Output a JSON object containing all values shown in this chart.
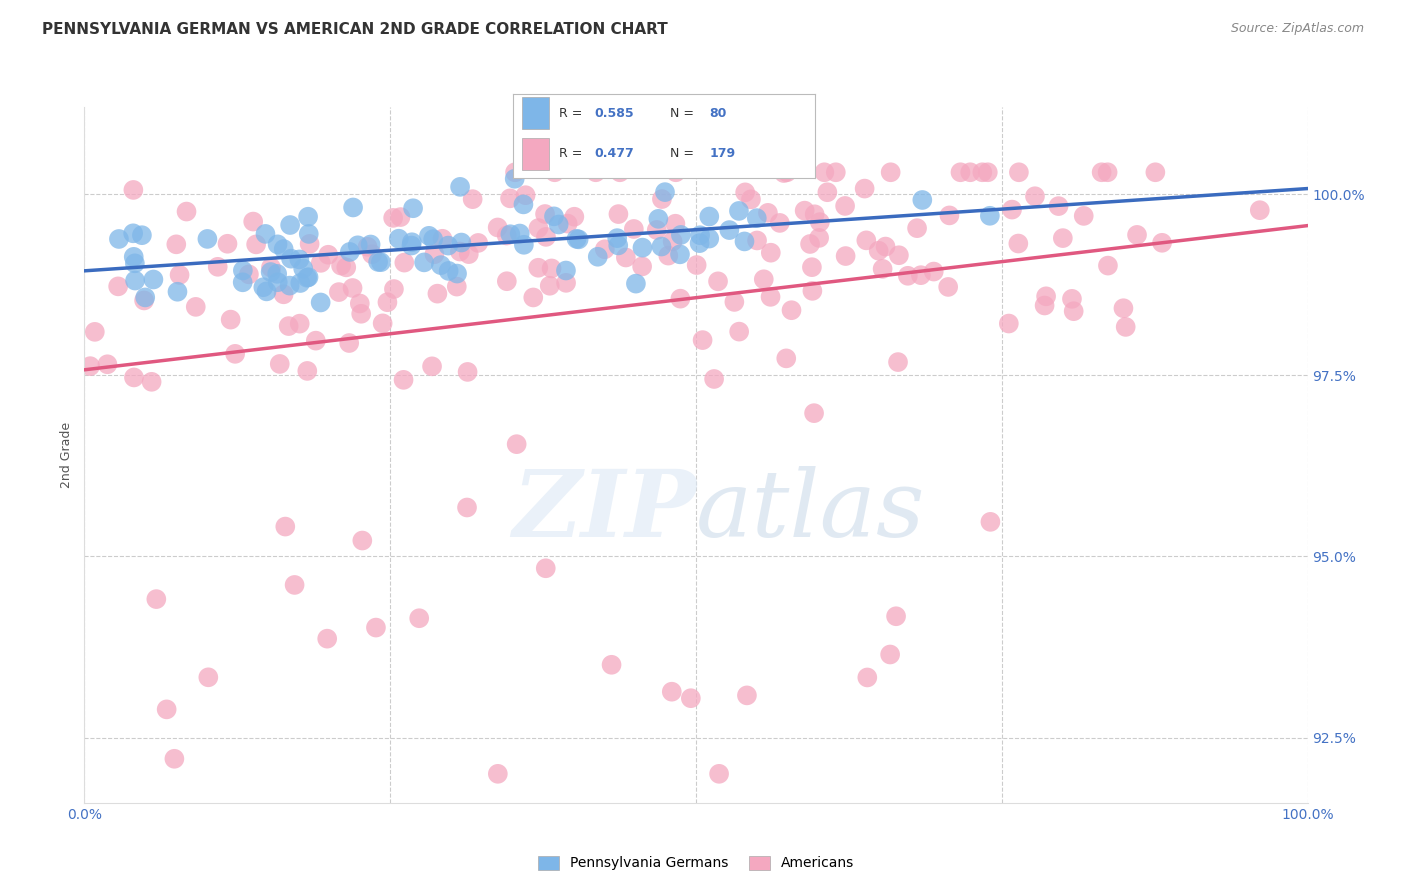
{
  "title": "PENNSYLVANIA GERMAN VS AMERICAN 2ND GRADE CORRELATION CHART",
  "source": "Source: ZipAtlas.com",
  "ylabel": "2nd Grade",
  "ytick_labels": [
    "92.5%",
    "95.0%",
    "97.5%",
    "100.0%"
  ],
  "ytick_values": [
    0.925,
    0.95,
    0.975,
    1.0
  ],
  "xmin": 0.0,
  "xmax": 1.0,
  "ymin": 0.916,
  "ymax": 1.012,
  "r_pa_german": 0.585,
  "n_pa_german": 80,
  "r_american": 0.477,
  "n_american": 179,
  "pa_german_color": "#7eb6e8",
  "american_color": "#f4a8c0",
  "pa_german_line_color": "#3a6bbf",
  "american_line_color": "#e05880",
  "legend_pa_german": "Pennsylvania Germans",
  "legend_american": "Americans",
  "watermark_zip": "ZIP",
  "watermark_atlas": "atlas",
  "background_color": "#ffffff",
  "title_fontsize": 11,
  "axis_label_fontsize": 9,
  "tick_fontsize": 10,
  "legend_fontsize": 10,
  "source_fontsize": 9
}
